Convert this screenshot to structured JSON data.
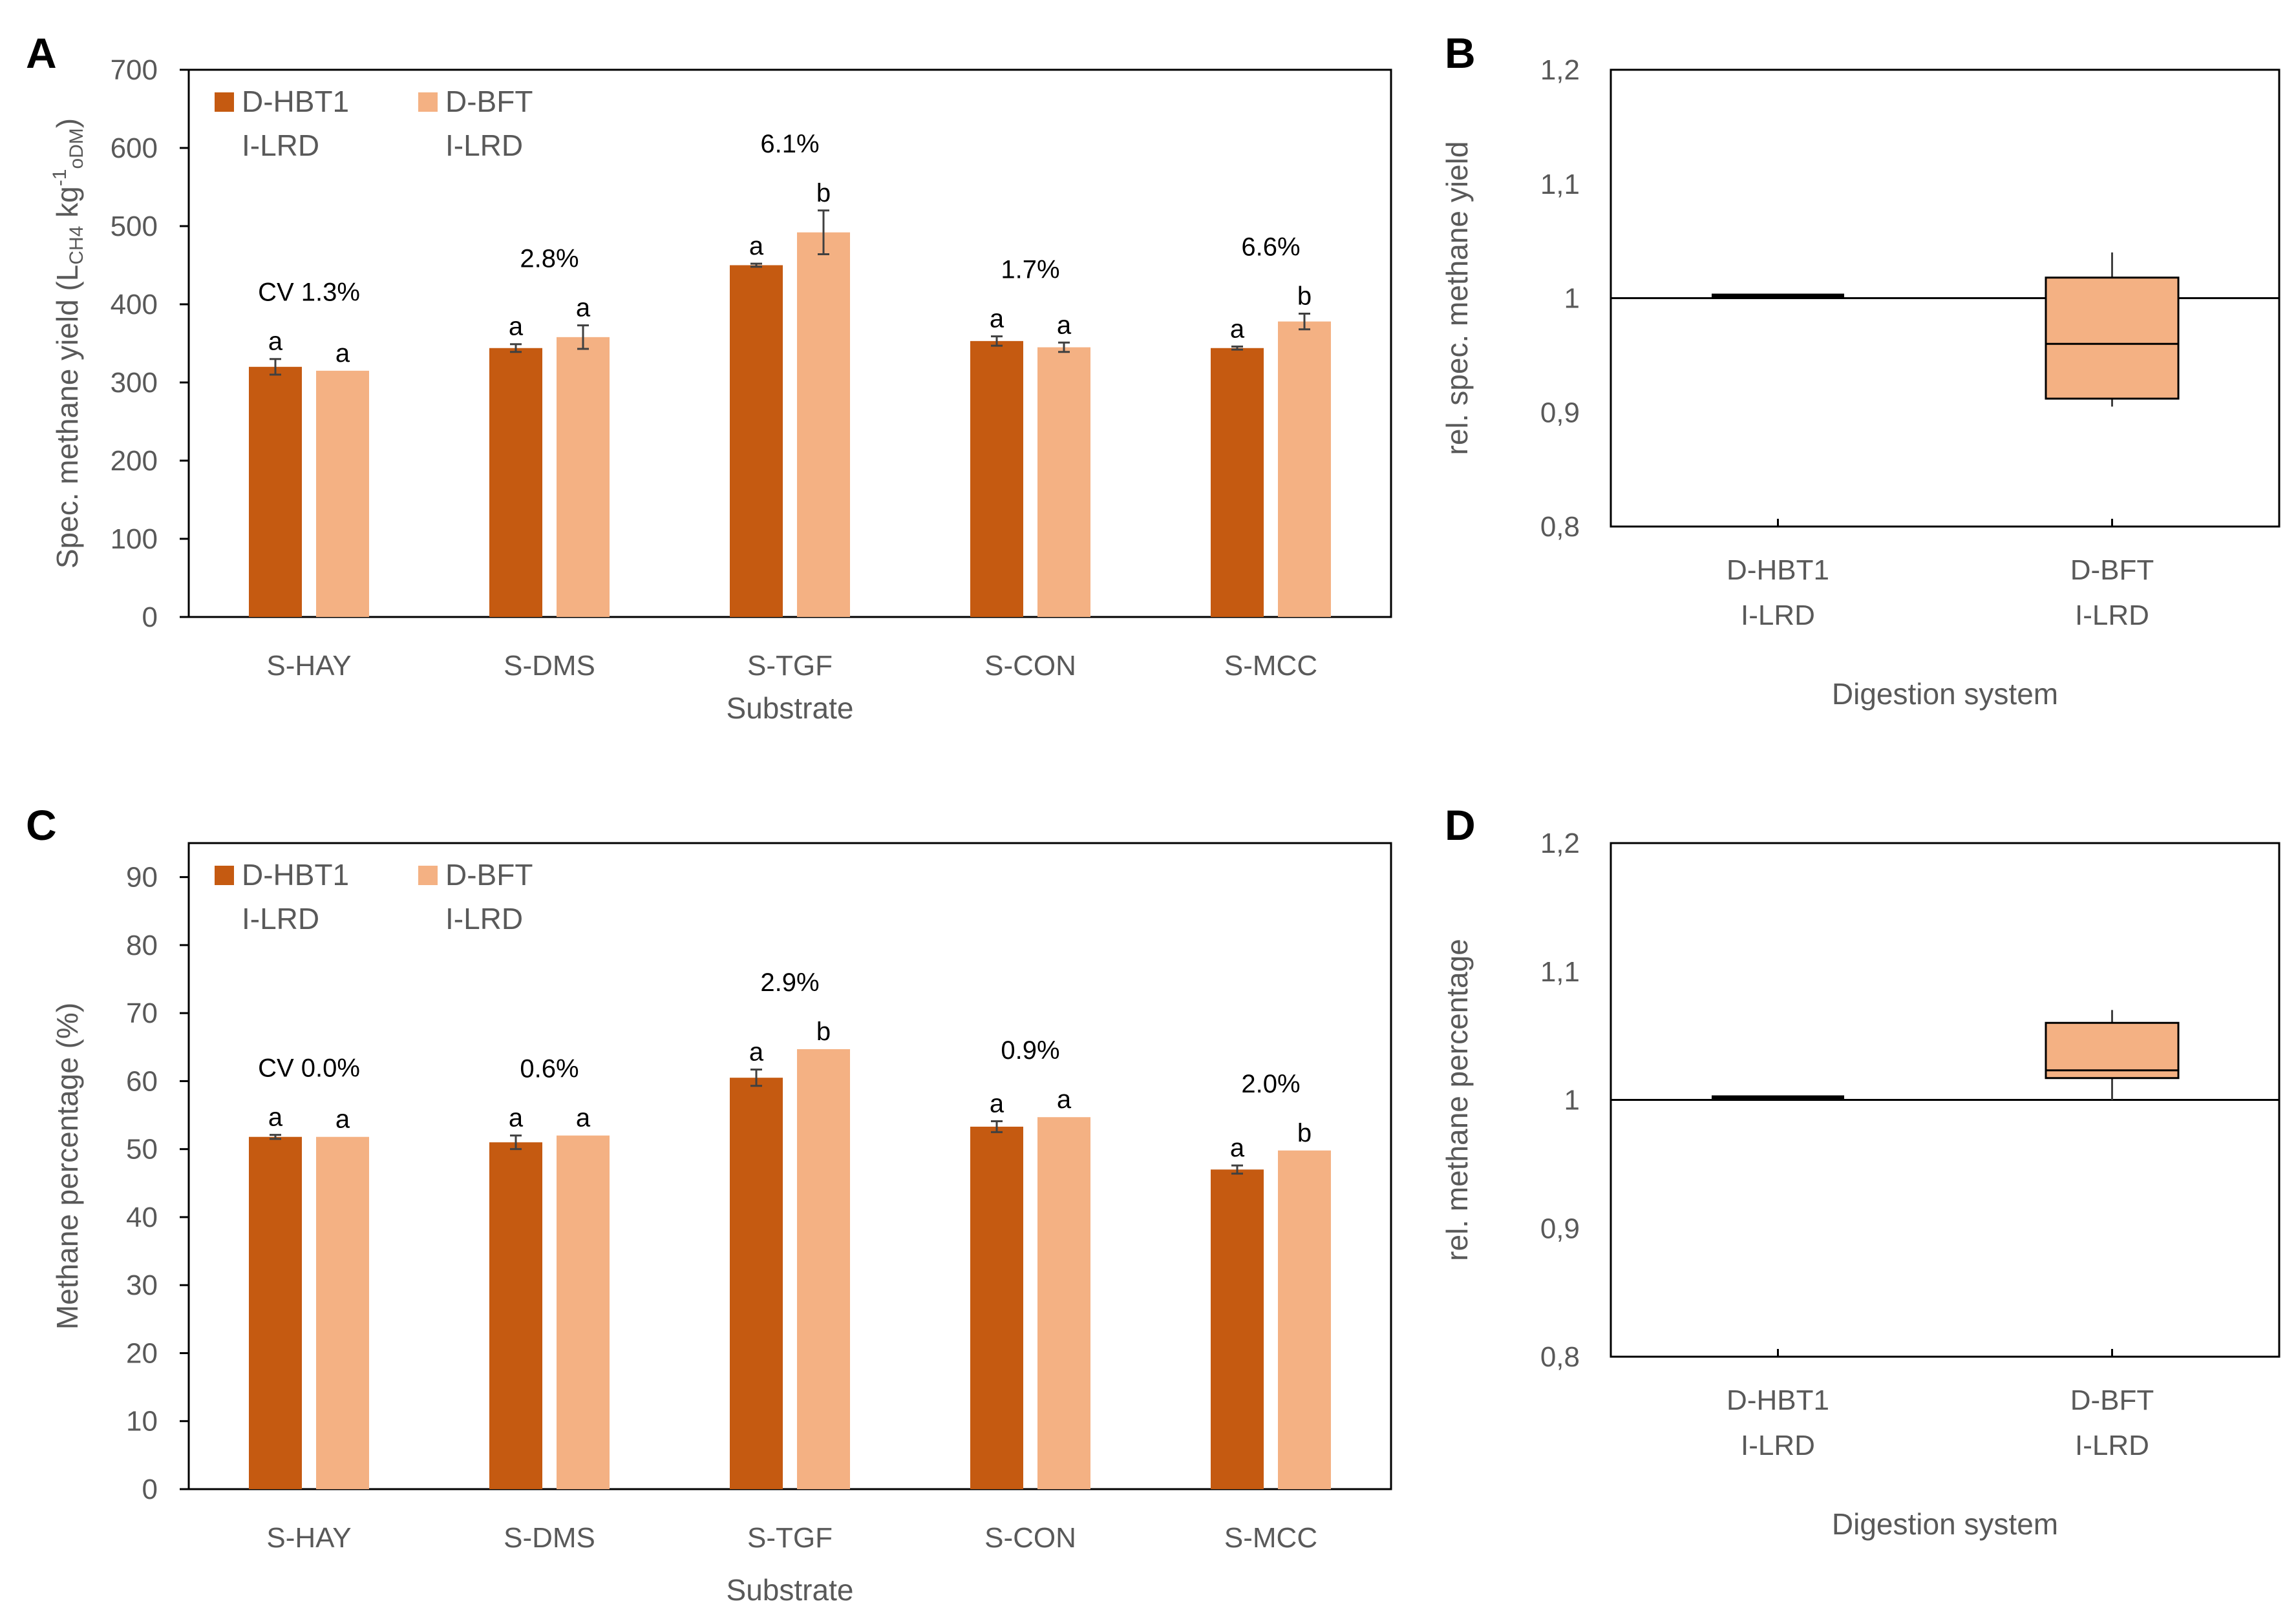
{
  "figure": {
    "colors": {
      "dhbt1": "#C55A11",
      "dbft": "#F4B183",
      "frame": "#000000",
      "text": "#595959",
      "box": "#F4B183"
    }
  },
  "chart_data": [
    {
      "id": "A",
      "panel_label": "A",
      "type": "bar",
      "categories": [
        "S-HAY",
        "S-DMS",
        "S-TGF",
        "S-CON",
        "S-MCC"
      ],
      "series": [
        {
          "name_line1": "D-HBT1",
          "name_line2": "I-LRD",
          "values": [
            320,
            344,
            450,
            353,
            344
          ],
          "errors": [
            10,
            5,
            2,
            6,
            2
          ],
          "letters": [
            "a",
            "a",
            "a",
            "a",
            "a"
          ]
        },
        {
          "name_line1": "D-BFT",
          "name_line2": "I-LRD",
          "values": [
            315,
            358,
            492,
            345,
            378
          ],
          "errors": [
            0,
            15,
            28,
            6,
            10
          ],
          "letters": [
            "a",
            "a",
            "b",
            "a",
            "b"
          ]
        }
      ],
      "cv_labels": [
        "CV 1.3%",
        "2.8%",
        "6.1%",
        "1.7%",
        "6.6%"
      ],
      "ylim": [
        0,
        700
      ],
      "yticks": [
        "0",
        "100",
        "200",
        "300",
        "400",
        "500",
        "600",
        "700"
      ],
      "xlabel": "Substrate",
      "ylabel": "Spec. methane yield (L",
      "ylabel_sub1": "CH4",
      "ylabel_mid": " kg",
      "ylabel_sup": "-1",
      "ylabel_sub2": "oDM",
      "ylabel_end": ")",
      "legend_position": "top-left"
    },
    {
      "id": "B",
      "panel_label": "B",
      "type": "box",
      "categories_line1": [
        "D-HBT1",
        "D-BFT"
      ],
      "categories_line2": [
        "I-LRD",
        "I-LRD"
      ],
      "boxes": [
        {
          "min": 1.0,
          "q1": 1.0,
          "median": 1.0,
          "q3": 1.0,
          "max": 1.0
        },
        {
          "min": 0.905,
          "q1": 0.912,
          "median": 0.96,
          "q3": 1.018,
          "max": 1.04
        }
      ],
      "reference_line": 1,
      "ylim": [
        0.8,
        1.2
      ],
      "yticks": [
        "0,8",
        "0,9",
        "1",
        "1,1",
        "1,2"
      ],
      "xlabel": "Digestion system",
      "ylabel": "rel. spec. methane yield"
    },
    {
      "id": "C",
      "panel_label": "C",
      "type": "bar",
      "categories": [
        "S-HAY",
        "S-DMS",
        "S-TGF",
        "S-CON",
        "S-MCC"
      ],
      "series": [
        {
          "name_line1": "D-HBT1",
          "name_line2": "I-LRD",
          "values": [
            51.8,
            51.0,
            60.5,
            53.3,
            47.0
          ],
          "errors": [
            0.3,
            1.0,
            1.2,
            0.8,
            0.6
          ],
          "letters": [
            "a",
            "a",
            "a",
            "a",
            "a"
          ]
        },
        {
          "name_line1": "D-BFT",
          "name_line2": "I-LRD",
          "values": [
            51.8,
            52.0,
            64.7,
            54.7,
            49.8
          ],
          "errors": [
            0,
            0,
            0,
            0,
            0
          ],
          "letters": [
            "a",
            "a",
            "b",
            "a",
            "b"
          ]
        }
      ],
      "cv_labels": [
        "CV 0.0%",
        "0.6%",
        "2.9%",
        "0.9%",
        "2.0%"
      ],
      "ylim": [
        0,
        95
      ],
      "yticks": [
        "0",
        "10",
        "20",
        "30",
        "40",
        "50",
        "60",
        "70",
        "80",
        "90"
      ],
      "xlabel": "Substrate",
      "ylabel": "Methane percentage (%)",
      "legend_position": "top-left"
    },
    {
      "id": "D",
      "panel_label": "D",
      "type": "box",
      "categories_line1": [
        "D-HBT1",
        "D-BFT"
      ],
      "categories_line2": [
        "I-LRD",
        "I-LRD"
      ],
      "boxes": [
        {
          "min": 1.0,
          "q1": 1.0,
          "median": 1.0,
          "q3": 1.0,
          "max": 1.0
        },
        {
          "min": 1.0,
          "q1": 1.017,
          "median": 1.023,
          "q3": 1.06,
          "max": 1.07
        }
      ],
      "reference_line": 1,
      "ylim": [
        0.8,
        1.2
      ],
      "yticks": [
        "0,8",
        "0,9",
        "1",
        "1,1",
        "1,2"
      ],
      "xlabel": "Digestion system",
      "ylabel": "rel. methane percentage"
    }
  ]
}
